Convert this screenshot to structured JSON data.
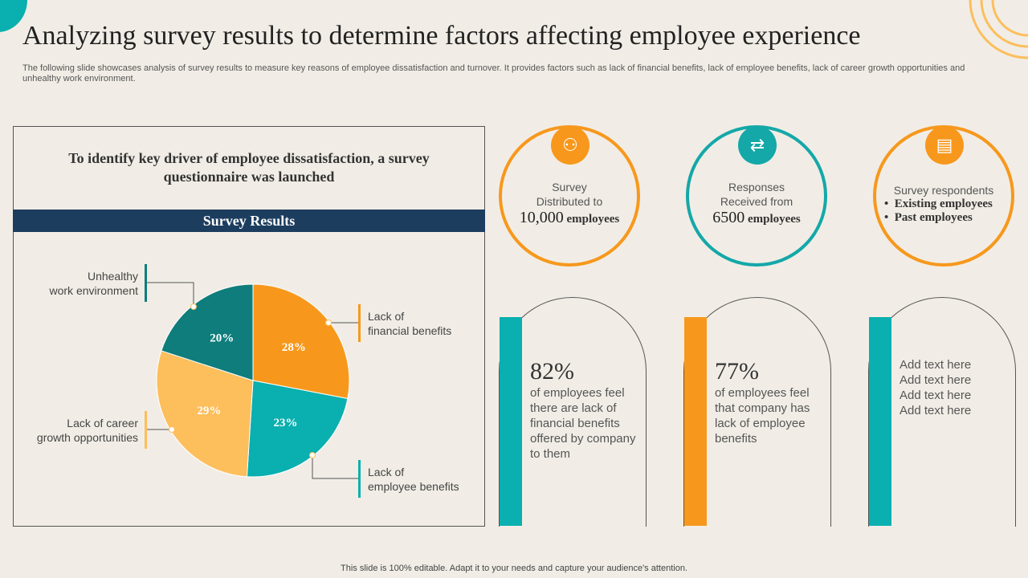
{
  "title": "Analyzing survey results to determine factors affecting employee experience",
  "subtitle": "The following slide showcases analysis of survey results to measure key reasons of employee dissatisfaction and turnover. It provides factors such as lack of financial benefits, lack of employee benefits, lack of career growth opportunities and unhealthy work environment.",
  "panel": {
    "heading": "To identify key driver of employee dissatisfaction, a survey questionnaire was launched",
    "bar_label": "Survey Results"
  },
  "chart_data": {
    "type": "pie",
    "title": "Survey Results",
    "slices": [
      {
        "label": "Lack of financial benefits",
        "value": 28,
        "text": "28%",
        "color": "#f7981d"
      },
      {
        "label": "Lack of employee benefits",
        "value": 23,
        "text": "23%",
        "color": "#0aafaf"
      },
      {
        "label": "Lack of career growth opportunities",
        "value": 29,
        "text": "29%",
        "color": "#fdbe5c"
      },
      {
        "label": "Unhealthy work environment",
        "value": 20,
        "text": "20%",
        "color": "#0e7d7c"
      }
    ]
  },
  "callouts": {
    "unhealthy": [
      "Unhealthy",
      "work environment"
    ],
    "financial": [
      "Lack of",
      "financial benefits"
    ],
    "career": [
      "Lack of career",
      "growth opportunities"
    ],
    "employee": [
      "Lack of",
      "employee benefits"
    ]
  },
  "stats": [
    {
      "icon": "network-people-icon",
      "line1": "Survey",
      "line2": "Distributed to",
      "num": "10,000",
      "unit": " employees",
      "color": "#f7981d"
    },
    {
      "icon": "chat-exchange-icon",
      "line1": "Responses",
      "line2": "Received from",
      "num": "6500",
      "unit": " employees",
      "color": "#14a8a8"
    },
    {
      "icon": "clipboard-person-icon",
      "line1": "Survey respondents",
      "bullets": [
        "Existing employees",
        "Past employees"
      ],
      "color": "#f7981d"
    }
  ],
  "arches": [
    {
      "pct": "82%",
      "text": "of employees feel there are lack of financial benefits offered by company to them",
      "color": "#0aafaf"
    },
    {
      "pct": "77%",
      "text": "of employees feel that company has lack of employee benefits",
      "color": "#f7981d"
    },
    {
      "lines": [
        "Add text here",
        "Add text here",
        "Add text here",
        "Add text here"
      ],
      "color": "#0aafaf"
    }
  ],
  "footer": "This slide is 100% editable. Adapt it to your needs and capture your audience's attention."
}
